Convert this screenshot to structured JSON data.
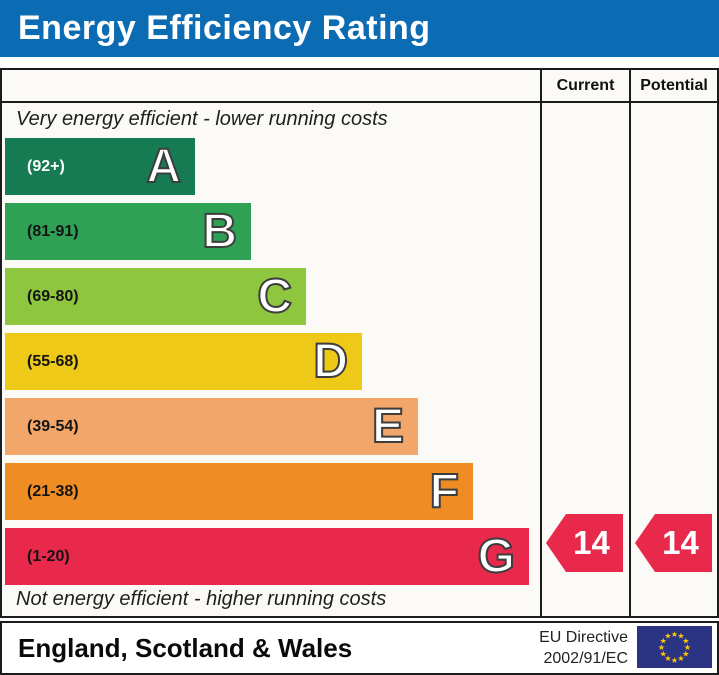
{
  "title": "Energy Efficiency Rating",
  "table": {
    "columns": {
      "current": "Current",
      "potential": "Potential"
    },
    "top_caption": "Very energy efficient - lower running costs",
    "bottom_caption": "Not energy efficient - higher running costs"
  },
  "chart_data": {
    "type": "bar",
    "title": "Energy Efficiency Rating",
    "bands": [
      {
        "letter": "A",
        "range": "(92+)",
        "color": "#167a53"
      },
      {
        "letter": "B",
        "range": "(81-91)",
        "color": "#2ea155"
      },
      {
        "letter": "C",
        "range": "(69-80)",
        "color": "#8ec63f"
      },
      {
        "letter": "D",
        "range": "(55-68)",
        "color": "#eec918"
      },
      {
        "letter": "E",
        "range": "(39-54)",
        "color": "#f3a669"
      },
      {
        "letter": "F",
        "range": "(21-38)",
        "color": "#ef8c23"
      },
      {
        "letter": "G",
        "range": "(1-20)",
        "color": "#e8294b"
      }
    ],
    "ratings": {
      "current": {
        "value": 14,
        "band": "G",
        "color": "#e8294b"
      },
      "potential": {
        "value": 14,
        "band": "G",
        "color": "#e8294b"
      }
    }
  },
  "footer": {
    "region": "England, Scotland & Wales",
    "directive_line1": "EU Directive",
    "directive_line2": "2002/91/EC"
  },
  "colors": {
    "title_bar": "#0c6cb3",
    "border": "#1c1c1c",
    "panel_bg": "#fbfaf6",
    "eu_flag_blue": "#2b3383",
    "eu_star_yellow": "#ffcb05"
  }
}
